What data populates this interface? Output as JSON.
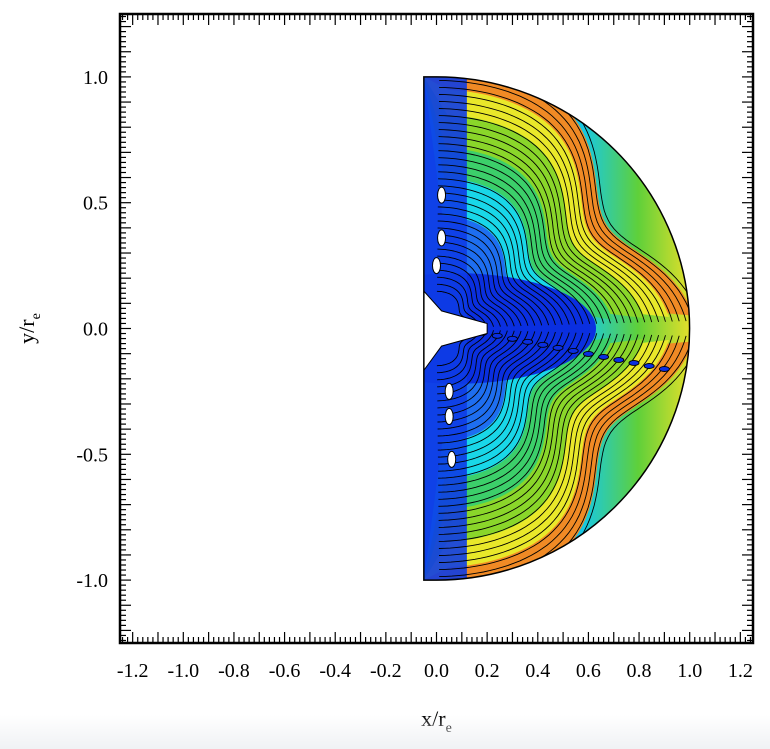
{
  "chart_data": {
    "type": "heatmap",
    "title": "",
    "xlabel": "x/r",
    "xlabel_sub": "e",
    "ylabel": "y/r",
    "ylabel_sub": "e",
    "xlim": [
      -1.25,
      1.25
    ],
    "ylim": [
      -1.25,
      1.25
    ],
    "x_ticks": [
      "-1.2",
      "-1.0",
      "-0.8",
      "-0.6",
      "-0.4",
      "-0.2",
      "0.0",
      "0.2",
      "0.4",
      "0.6",
      "0.8",
      "1.0",
      "1.2"
    ],
    "x_tick_values": [
      -1.2,
      -1.0,
      -0.8,
      -0.6,
      -0.4,
      -0.2,
      0.0,
      0.2,
      0.4,
      0.6,
      0.8,
      1.0,
      1.2
    ],
    "y_ticks": [
      "1.0",
      "0.5",
      "0.0",
      "-0.5",
      "-1.0"
    ],
    "y_tick_values": [
      1.0,
      0.5,
      0.0,
      -0.5,
      -1.0
    ],
    "domain": {
      "shape": "half-disk",
      "x_min": -0.05,
      "radius": 1.0
    },
    "colormap": [
      "#0a2fe0",
      "#1e6ef0",
      "#19d7e8",
      "#3ccf6a",
      "#7fd628",
      "#e9e82a",
      "#f08a25"
    ],
    "contour_line_color": "#000000",
    "grid": false
  }
}
